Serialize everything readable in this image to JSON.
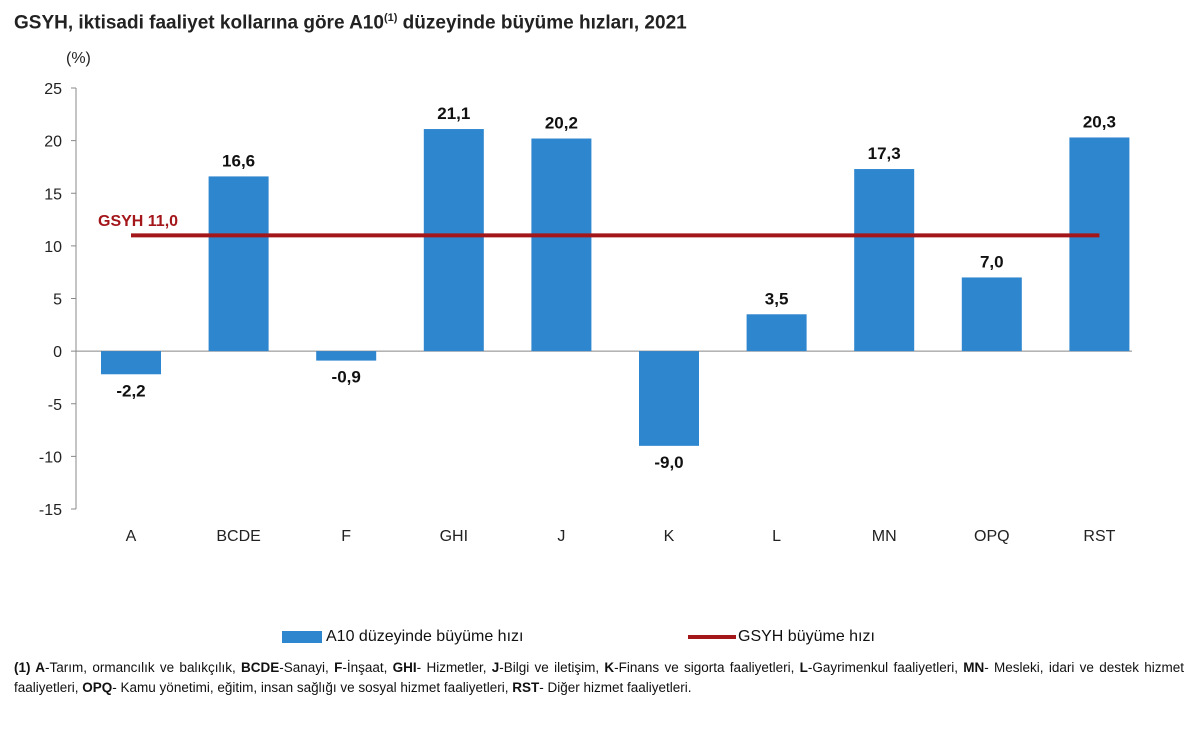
{
  "title": {
    "main": "GSYH, iktisadi faaliyet kollarına göre A10",
    "sup": "(1)",
    "rest": " düzeyinde büyüme hızları, 2021"
  },
  "chart_data": {
    "type": "bar",
    "ylabel": "(%)",
    "ylim": [
      -15,
      25
    ],
    "yticks": [
      25,
      20,
      15,
      10,
      5,
      0,
      -5,
      -10,
      -15
    ],
    "categories": [
      "A",
      "BCDE",
      "F",
      "GHI",
      "J",
      "K",
      "L",
      "MN",
      "OPQ",
      "RST"
    ],
    "series": [
      {
        "name": "A10 düzeyinde büyüme hızı",
        "values": [
          -2.2,
          16.6,
          -0.9,
          21.1,
          20.2,
          -9.0,
          3.5,
          17.3,
          7.0,
          20.3
        ],
        "labels": [
          "-2,2",
          "16,6",
          "-0,9",
          "21,1",
          "20,2",
          "-9,0",
          "3,5",
          "17,3",
          "7,0",
          "20,3"
        ],
        "color": "#2e86cf"
      }
    ],
    "reference_line": {
      "name": "GSYH büyüme hızı",
      "value": 11.0,
      "label": "GSYH 11,0",
      "color": "#a3161a"
    },
    "grid": false,
    "legend": "bottom"
  },
  "footnote": [
    {
      "b": "(1) A",
      "t": "-Tarım, ormancılık ve balıkçılık, "
    },
    {
      "b": "BCDE",
      "t": "-Sanayi, "
    },
    {
      "b": "F",
      "t": "-İnşaat, "
    },
    {
      "b": "GHI",
      "t": "- Hizmetler, "
    },
    {
      "b": "J",
      "t": "-Bilgi ve iletişim, "
    },
    {
      "b": "K",
      "t": "-Finans ve sigorta faaliyetleri, "
    },
    {
      "b": "L",
      "t": "-Gayrimenkul faaliyetleri, "
    },
    {
      "b": "MN",
      "t": "- Mesleki, idari ve destek hizmet faaliyetleri, "
    },
    {
      "b": "OPQ",
      "t": "- Kamu yönetimi, eğitim, insan sağlığı ve sosyal hizmet faaliyetleri, "
    },
    {
      "b": "RST",
      "t": "- Diğer hizmet faaliyetleri."
    }
  ]
}
